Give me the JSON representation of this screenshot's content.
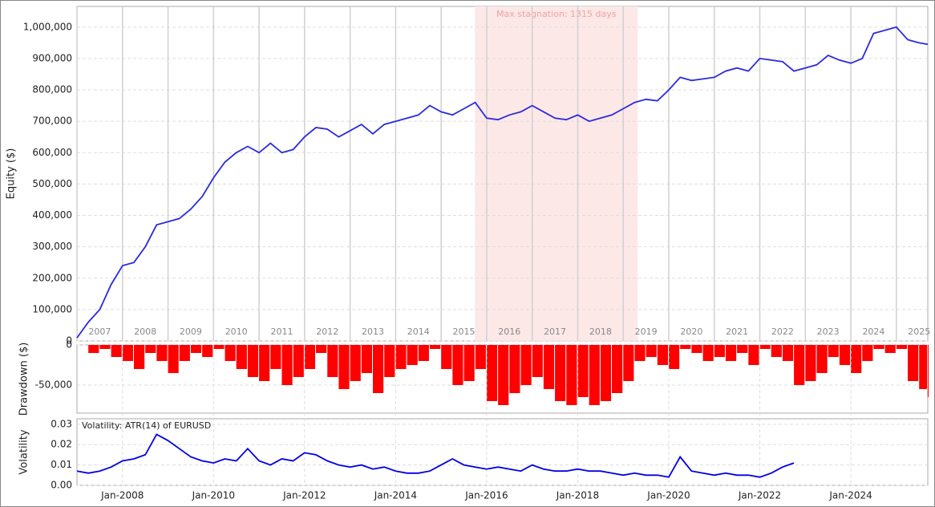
{
  "chart_data": [
    {
      "type": "line",
      "ylabel": "Equity ($)",
      "color": "#2b2bdc",
      "grid": true,
      "shade": {
        "label": "Max stagnation: 1315 days",
        "x": [
          2015.74,
          2019.32
        ],
        "color": "#fde8e8"
      },
      "xlim": [
        2007,
        2025.69
      ],
      "xticks": [
        2007,
        2008,
        2009,
        2010,
        2011,
        2012,
        2013,
        2014,
        2015,
        2016,
        2017,
        2018,
        2019,
        2020,
        2021,
        2022,
        2023,
        2024,
        2025
      ],
      "ylim": [
        0,
        1066000
      ],
      "yticks": [
        0,
        {
          "value": 100000,
          "label": "100,000"
        },
        {
          "value": 200000,
          "label": "200,000"
        },
        {
          "value": 300000,
          "label": "300,000"
        },
        {
          "value": 400000,
          "label": "400,000"
        },
        {
          "value": 500000,
          "label": "500,000"
        },
        {
          "value": 600000,
          "label": "600,000"
        },
        {
          "value": 700000,
          "label": "700,000"
        },
        {
          "value": 800000,
          "label": "800,000"
        },
        {
          "value": 900000,
          "label": "900,000"
        },
        {
          "value": 1000000,
          "label": "1,000,000"
        }
      ],
      "x": [
        2007,
        2007.25,
        2007.5,
        2007.75,
        2008,
        2008.25,
        2008.5,
        2008.75,
        2009,
        2009.25,
        2009.5,
        2009.75,
        2010,
        2010.25,
        2010.5,
        2010.75,
        2011,
        2011.25,
        2011.5,
        2011.75,
        2012,
        2012.25,
        2012.5,
        2012.75,
        2013,
        2013.25,
        2013.5,
        2013.75,
        2014,
        2014.25,
        2014.5,
        2014.75,
        2015,
        2015.25,
        2015.5,
        2015.75,
        2016,
        2016.25,
        2016.5,
        2016.75,
        2017,
        2017.25,
        2017.5,
        2017.75,
        2018,
        2018.25,
        2018.5,
        2018.75,
        2019,
        2019.25,
        2019.5,
        2019.75,
        2020,
        2020.25,
        2020.5,
        2020.75,
        2021,
        2021.25,
        2021.5,
        2021.75,
        2022,
        2022.25,
        2022.5,
        2022.75,
        2023,
        2023.25,
        2023.5,
        2023.75,
        2024,
        2024.25,
        2024.5,
        2024.75,
        2025,
        2025.25,
        2025.5,
        2025.69
      ],
      "values": [
        10000,
        60000,
        100000,
        180000,
        240000,
        250000,
        300000,
        370000,
        380000,
        390000,
        420000,
        460000,
        520000,
        570000,
        600000,
        620000,
        600000,
        630000,
        600000,
        610000,
        650000,
        680000,
        675000,
        650000,
        670000,
        690000,
        660000,
        690000,
        700000,
        710000,
        720000,
        750000,
        730000,
        720000,
        740000,
        760000,
        710000,
        705000,
        720000,
        730000,
        750000,
        730000,
        710000,
        705000,
        720000,
        700000,
        710000,
        720000,
        740000,
        760000,
        770000,
        765000,
        800000,
        840000,
        830000,
        835000,
        840000,
        860000,
        870000,
        860000,
        900000,
        895000,
        890000,
        860000,
        870000,
        880000,
        910000,
        895000,
        885000,
        900000,
        980000,
        990000,
        1000000,
        960000,
        950000,
        945000
      ]
    },
    {
      "type": "bar",
      "ylabel": "Drawdown ($)",
      "color": "#ff0000",
      "grid": true,
      "xlim": [
        2007,
        2025.69
      ],
      "ylim": [
        -85000,
        0
      ],
      "yticks": [
        {
          "value": -50000,
          "label": "-50,000"
        },
        0
      ],
      "x": [
        2007,
        2007.25,
        2007.5,
        2007.75,
        2008,
        2008.25,
        2008.5,
        2008.75,
        2009,
        2009.25,
        2009.5,
        2009.75,
        2010,
        2010.25,
        2010.5,
        2010.75,
        2011,
        2011.25,
        2011.5,
        2011.75,
        2012,
        2012.25,
        2012.5,
        2012.75,
        2013,
        2013.25,
        2013.5,
        2013.75,
        2014,
        2014.25,
        2014.5,
        2014.75,
        2015,
        2015.25,
        2015.5,
        2015.75,
        2016,
        2016.25,
        2016.5,
        2016.75,
        2017,
        2017.25,
        2017.5,
        2017.75,
        2018,
        2018.25,
        2018.5,
        2018.75,
        2019,
        2019.25,
        2019.5,
        2019.75,
        2020,
        2020.25,
        2020.5,
        2020.75,
        2021,
        2021.25,
        2021.5,
        2021.75,
        2022,
        2022.25,
        2022.5,
        2022.75,
        2023,
        2023.25,
        2023.5,
        2023.75,
        2024,
        2024.25,
        2024.5,
        2024.75,
        2025,
        2025.25,
        2025.5,
        2025.69
      ],
      "values": [
        0,
        -10000,
        -5000,
        -15000,
        -20000,
        -30000,
        -10000,
        -20000,
        -35000,
        -20000,
        -10000,
        -15000,
        -5000,
        -20000,
        -30000,
        -40000,
        -45000,
        -30000,
        -50000,
        -40000,
        -30000,
        -10000,
        -40000,
        -55000,
        -45000,
        -35000,
        -60000,
        -40000,
        -30000,
        -25000,
        -20000,
        -5000,
        -30000,
        -50000,
        -45000,
        -30000,
        -70000,
        -75000,
        -60000,
        -50000,
        -40000,
        -55000,
        -70000,
        -75000,
        -65000,
        -75000,
        -70000,
        -60000,
        -45000,
        -20000,
        -15000,
        -25000,
        -30000,
        -5000,
        -10000,
        -20000,
        -15000,
        -20000,
        -10000,
        -25000,
        -5000,
        -15000,
        -20000,
        -50000,
        -45000,
        -35000,
        -15000,
        -25000,
        -35000,
        -20000,
        -5000,
        -10000,
        -5000,
        -45000,
        -55000,
        -65000
      ]
    },
    {
      "type": "line",
      "ylabel": "Volatility",
      "annotation": "Volatility: ATR(14) of EURUSD",
      "color": "#0000e6",
      "grid": true,
      "xlim": [
        2007,
        2025.69
      ],
      "xticks": [
        {
          "value": 2008,
          "label": "Jan-2008"
        },
        {
          "value": 2010,
          "label": "Jan-2010"
        },
        {
          "value": 2012,
          "label": "Jan-2012"
        },
        {
          "value": 2014,
          "label": "Jan-2014"
        },
        {
          "value": 2016,
          "label": "Jan-2016"
        },
        {
          "value": 2018,
          "label": "Jan-2018"
        },
        {
          "value": 2020,
          "label": "Jan-2020"
        },
        {
          "value": 2022,
          "label": "Jan-2022"
        },
        {
          "value": 2024,
          "label": "Jan-2024"
        }
      ],
      "ylim": [
        0,
        0.0327
      ],
      "yticks": [
        {
          "value": 0,
          "label": "0.00"
        },
        {
          "value": 0.01,
          "label": "0.01"
        },
        {
          "value": 0.02,
          "label": "0.02"
        },
        {
          "value": 0.03,
          "label": "0.03"
        }
      ],
      "x": [
        2007,
        2007.25,
        2007.5,
        2007.75,
        2008,
        2008.25,
        2008.5,
        2008.75,
        2009,
        2009.25,
        2009.5,
        2009.75,
        2010,
        2010.25,
        2010.5,
        2010.75,
        2011,
        2011.25,
        2011.5,
        2011.75,
        2012,
        2012.25,
        2012.5,
        2012.75,
        2013,
        2013.25,
        2013.5,
        2013.75,
        2014,
        2014.25,
        2014.5,
        2014.75,
        2015,
        2015.25,
        2015.5,
        2015.75,
        2016,
        2016.25,
        2016.5,
        2016.75,
        2017,
        2017.25,
        2017.5,
        2017.75,
        2018,
        2018.25,
        2018.5,
        2018.75,
        2019,
        2019.25,
        2019.5,
        2019.75,
        2020,
        2020.25,
        2020.5,
        2020.75,
        2021,
        2021.25,
        2021.5,
        2021.75,
        2022,
        2022.25,
        2022.5,
        2022.75,
        2023,
        2023.25,
        2023.5,
        2023.75,
        2024,
        2024.25,
        2024.5,
        2024.75,
        2025,
        2025.25,
        2025.5,
        2025.69
      ],
      "values": [
        0.007,
        0.006,
        0.007,
        0.009,
        0.012,
        0.013,
        0.015,
        0.025,
        0.022,
        0.018,
        0.014,
        0.012,
        0.011,
        0.013,
        0.012,
        0.018,
        0.012,
        0.01,
        0.013,
        0.012,
        0.016,
        0.015,
        0.012,
        0.01,
        0.009,
        0.01,
        0.008,
        0.009,
        0.007,
        0.006,
        0.006,
        0.007,
        0.01,
        0.013,
        0.01,
        0.009,
        0.008,
        0.009,
        0.008,
        0.007,
        0.01,
        0.008,
        0.007,
        0.007,
        0.008,
        0.007,
        0.007,
        0.006,
        0.005,
        0.006,
        0.005,
        0.005,
        0.004,
        0.014,
        0.007,
        0.006,
        0.005,
        0.006,
        0.005,
        0.005,
        0.004,
        0.006,
        0.009,
        0.011,
        null,
        null,
        null,
        null,
        null,
        null,
        null,
        null,
        null,
        null,
        null,
        null
      ]
    }
  ]
}
